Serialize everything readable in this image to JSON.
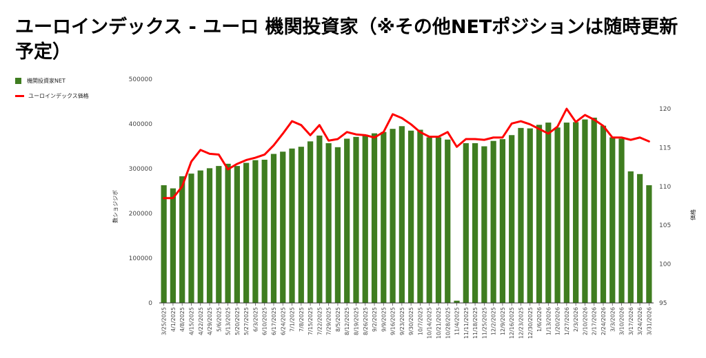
{
  "title": "ユーロインデックス - ユーロ 機関投資家（※その他NETポジションは随時更新予定）",
  "legend": {
    "items": [
      {
        "label": "機関投資家NET",
        "color": "#3f7d20",
        "kind": "bar"
      },
      {
        "label": "ユーロインデックス価格",
        "color": "#ff0000",
        "kind": "line"
      }
    ]
  },
  "chart_data": {
    "type": "bar",
    "title": "ユーロインデックス - ユーロ 機関投資家（※その他NETポジションは随時更新予定）",
    "ylabel": "数ショジジボ",
    "y2label": "価格",
    "ylim": [
      0,
      500000
    ],
    "y2lim": [
      95,
      120
    ],
    "y_ticks": [
      0,
      100000,
      200000,
      300000,
      400000,
      500000
    ],
    "y2_ticks": [
      95,
      100,
      105,
      110,
      115,
      120
    ],
    "legend_position": "top-left",
    "grid": false,
    "categories": [
      "3/25/2025",
      "4/1/2025",
      "4/8/2025",
      "4/15/2025",
      "4/22/2025",
      "4/29/2025",
      "5/6/2025",
      "5/13/2025",
      "5/20/2025",
      "5/27/2025",
      "6/3/2025",
      "6/10/2025",
      "6/17/2025",
      "6/24/2025",
      "7/1/2025",
      "7/8/2025",
      "7/15/2025",
      "7/22/2025",
      "7/29/2025",
      "8/5/2025",
      "8/12/2025",
      "8/19/2025",
      "8/26/2025",
      "9/2/2025",
      "9/9/2025",
      "9/16/2025",
      "9/23/2025",
      "9/30/2025",
      "10/7/2025",
      "10/14/2025",
      "10/21/2025",
      "10/28/2025",
      "11/4/2025",
      "11/11/2025",
      "11/18/2025",
      "11/25/2025",
      "12/2/2025",
      "12/9/2025",
      "12/16/2025",
      "12/23/2025",
      "12/30/2025",
      "1/6/2026",
      "1/13/2026",
      "1/20/2026",
      "1/27/2026",
      "2/3/2026",
      "2/10/2026",
      "2/17/2026",
      "2/24/2026",
      "3/3/2026",
      "3/10/2026",
      "3/17/2026",
      "3/24/2026",
      "3/31/2026"
    ],
    "x_tick_labels": [
      "3/25/2025",
      "4/1/2025",
      "4/8/2025",
      "4/15/2025",
      "4/22/2025",
      "4/29/2025",
      "5/6/2025",
      "5/13/2025",
      "5/20/2025",
      "5/27/2025",
      "6/3/2025",
      "6/10/2025",
      "6/17/2025",
      "6/24/2025",
      "7/1/2025",
      "7/8/2025",
      "7/15/2025",
      "7/22/2025",
      "7/29/2025",
      "8/5/2025",
      "8/12/2025",
      "8/19/2025",
      "8/26/2025",
      "9/2/2025",
      "9/9/2025",
      "9/16/2025",
      "9/23/2025",
      "9/30/2025",
      "10/7/2025",
      "10/14/2025",
      "10/21/2025",
      "10/28/2025",
      "11/4/2025",
      "11/11/2025",
      "11/18/2025",
      "11/25/2025",
      "12/2/2025",
      "12/9/2025",
      "12/16/2025",
      "12/23/2025",
      "12/30/2025",
      "1/6/2026",
      "1/13/2026",
      "1/20/2026",
      "1/27/2026",
      "2/3/2026",
      "2/10/2026",
      "2/17/2026",
      "2/24/2026",
      "3/3/2026",
      "3/10/2026",
      "3/17/2026",
      "3/24/2026",
      "3/31/2026"
    ],
    "series": [
      {
        "name": "機関投資家NET",
        "type": "bar",
        "axis": "left",
        "color": "#3f7d20",
        "values": [
          263000,
          256000,
          283000,
          289000,
          296000,
          301000,
          306000,
          311000,
          306000,
          313000,
          319000,
          320000,
          333000,
          338000,
          345000,
          349000,
          361000,
          374000,
          357000,
          348000,
          367000,
          371000,
          376000,
          379000,
          382000,
          389000,
          395000,
          385000,
          387000,
          370000,
          370000,
          365000,
          5000,
          357000,
          357000,
          350000,
          362000,
          366000,
          375000,
          391000,
          390000,
          398000,
          403000,
          392000,
          403000,
          404000,
          410000,
          414000,
          396000,
          370000,
          367000,
          294000,
          288000,
          263000
        ]
      },
      {
        "name": "ユーロインデックス価格",
        "type": "line",
        "axis": "right",
        "color": "#ff0000",
        "values": [
          108.5,
          108.5,
          110.0,
          113.2,
          114.7,
          114.2,
          114.1,
          112.2,
          112.9,
          113.4,
          113.7,
          114.1,
          115.3,
          116.8,
          118.4,
          117.9,
          116.6,
          117.9,
          115.9,
          116.1,
          117.0,
          116.7,
          116.6,
          116.3,
          117.0,
          119.3,
          118.8,
          118.0,
          117.0,
          116.4,
          116.4,
          117.0,
          115.1,
          116.1,
          116.1,
          116.0,
          116.3,
          116.3,
          118.1,
          118.4,
          118.0,
          117.4,
          116.8,
          117.7,
          120.0,
          118.3,
          119.2,
          118.6,
          117.8,
          116.3,
          116.3,
          116.0,
          116.3,
          115.8
        ]
      }
    ]
  }
}
